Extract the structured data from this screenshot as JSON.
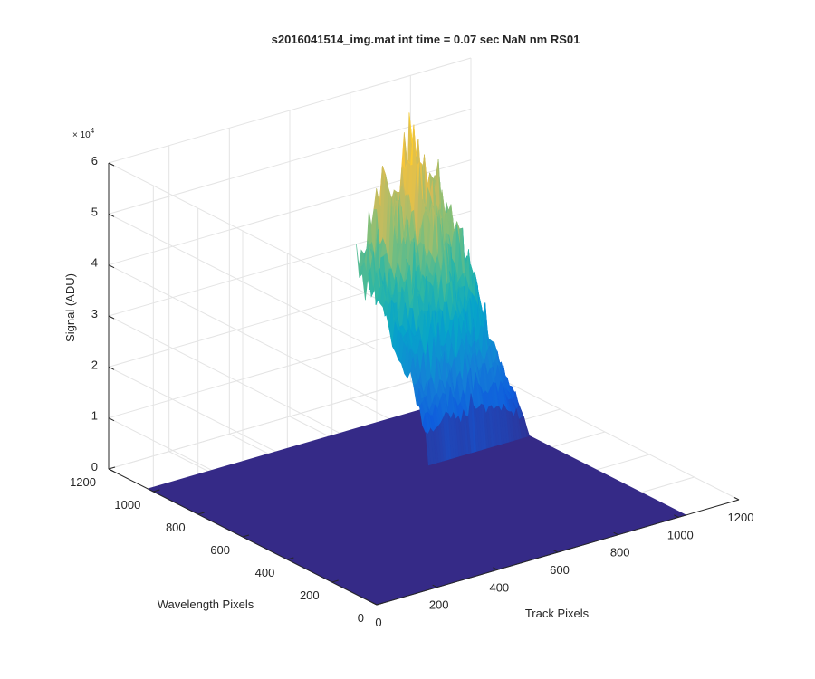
{
  "chart_data": {
    "type": "surface",
    "title": "s2016041514_img.mat int time = 0.07 sec  NaN nm RS01",
    "xlabel": "Track Pixels",
    "ylabel": "Wavelength Pixels",
    "zlabel": "Signal (ADU)",
    "z_exponent_label": "× 10",
    "z_exponent_power": "4",
    "xlim": [
      0,
      1200
    ],
    "ylim": [
      0,
      1200
    ],
    "zlim": [
      0,
      60000
    ],
    "x_ticks": [
      "0",
      "200",
      "400",
      "600",
      "800",
      "1000",
      "1200"
    ],
    "y_ticks": [
      "0",
      "200",
      "400",
      "600",
      "800",
      "1000",
      "1200"
    ],
    "z_ticks": [
      "0",
      "1",
      "2",
      "3",
      "4",
      "5",
      "6"
    ],
    "colormap": "parula",
    "grid": true,
    "data_extent": {
      "x": [
        0,
        1024
      ],
      "y": [
        0,
        1024
      ]
    },
    "signal_region": {
      "x": [
        690,
        1024
      ],
      "y": [
        700,
        1024
      ]
    },
    "baseline_signal": 0,
    "peak_signal": 59000,
    "ridge_profile": {
      "x": [
        690,
        720,
        760,
        800,
        840,
        880,
        920,
        960,
        1000,
        1024
      ],
      "peak": [
        38000,
        45000,
        48000,
        52000,
        58000,
        57000,
        50000,
        44000,
        30000,
        12000
      ]
    }
  }
}
